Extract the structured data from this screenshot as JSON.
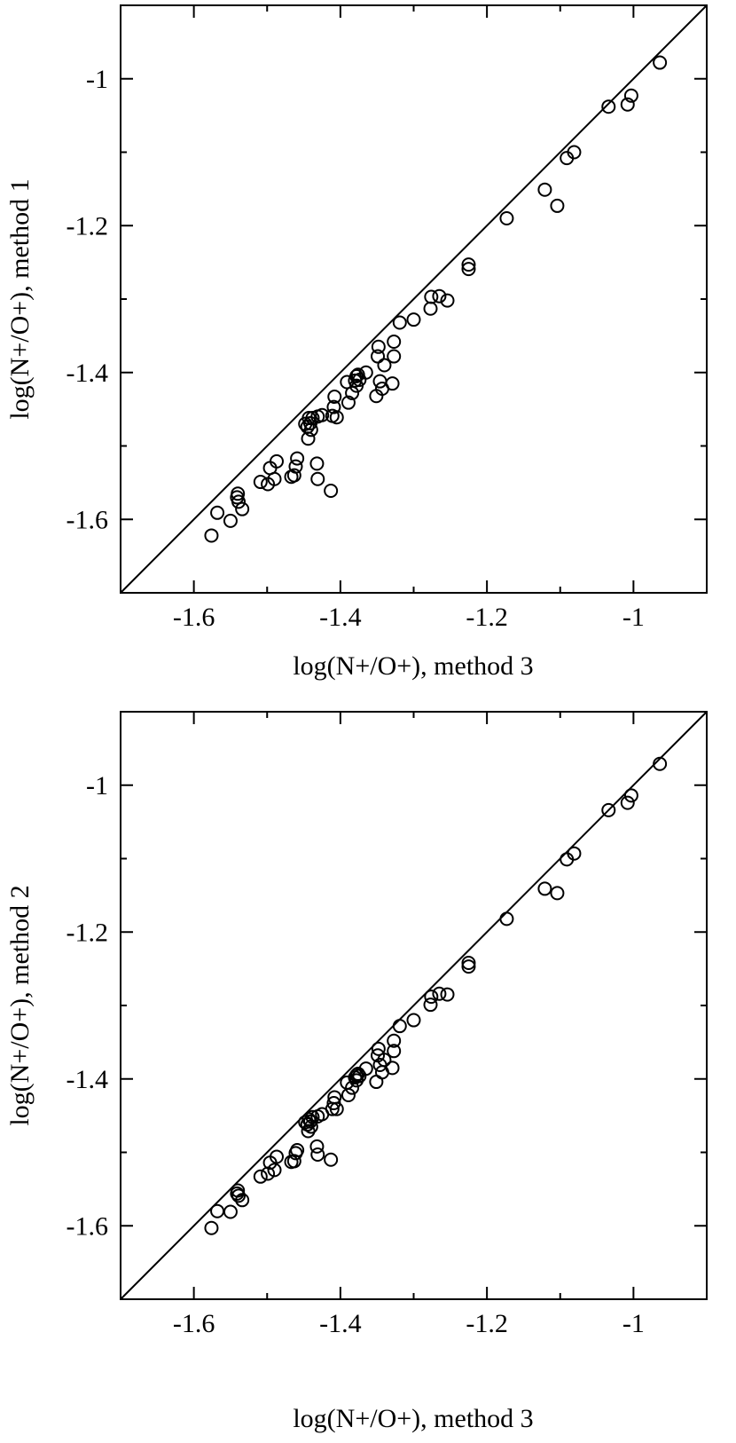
{
  "chart_data": [
    {
      "type": "scatter",
      "xlabel": "log(N+/O+),  method 3",
      "ylabel": "log(N+/O+),  method 1",
      "xlim": [
        -1.7,
        -0.9
      ],
      "ylim": [
        -1.7,
        -0.9
      ],
      "xticks": [
        -1.6,
        -1.4,
        -1.2,
        -1
      ],
      "yticks": [
        -1.6,
        -1.4,
        -1.2,
        -1
      ],
      "xtick_labels": [
        "-1.6",
        "-1.4",
        "-1.2",
        "-1"
      ],
      "ytick_labels": [
        "-1.6",
        "-1.4",
        "-1.2",
        "-1"
      ],
      "reference_line": "y = x",
      "grid": false,
      "points": [
        [
          -0.964,
          -0.978
        ],
        [
          -1.003,
          -1.023
        ],
        [
          -1.008,
          -1.035
        ],
        [
          -1.034,
          -1.038
        ],
        [
          -1.081,
          -1.1
        ],
        [
          -1.091,
          -1.108
        ],
        [
          -1.104,
          -1.173
        ],
        [
          -1.121,
          -1.151
        ],
        [
          -1.173,
          -1.19
        ],
        [
          -1.225,
          -1.253
        ],
        [
          -1.225,
          -1.259
        ],
        [
          -1.254,
          -1.302
        ],
        [
          -1.265,
          -1.296
        ],
        [
          -1.276,
          -1.297
        ],
        [
          -1.277,
          -1.313
        ],
        [
          -1.3,
          -1.328
        ],
        [
          -1.319,
          -1.332
        ],
        [
          -1.327,
          -1.358
        ],
        [
          -1.327,
          -1.378
        ],
        [
          -1.329,
          -1.415
        ],
        [
          -1.34,
          -1.39
        ],
        [
          -1.343,
          -1.422
        ],
        [
          -1.346,
          -1.412
        ],
        [
          -1.348,
          -1.365
        ],
        [
          -1.349,
          -1.378
        ],
        [
          -1.351,
          -1.432
        ],
        [
          -1.365,
          -1.4
        ],
        [
          -1.374,
          -1.41
        ],
        [
          -1.376,
          -1.403
        ],
        [
          -1.378,
          -1.418
        ],
        [
          -1.378,
          -1.405
        ],
        [
          -1.38,
          -1.411
        ],
        [
          -1.384,
          -1.428
        ],
        [
          -1.389,
          -1.441
        ],
        [
          -1.391,
          -1.413
        ],
        [
          -1.405,
          -1.461
        ],
        [
          -1.408,
          -1.433
        ],
        [
          -1.409,
          -1.447
        ],
        [
          -1.411,
          -1.459
        ],
        [
          -1.413,
          -1.561
        ],
        [
          -1.425,
          -1.458
        ],
        [
          -1.431,
          -1.46
        ],
        [
          -1.431,
          -1.545
        ],
        [
          -1.432,
          -1.524
        ],
        [
          -1.438,
          -1.462
        ],
        [
          -1.44,
          -1.478
        ],
        [
          -1.441,
          -1.469
        ],
        [
          -1.443,
          -1.462
        ],
        [
          -1.444,
          -1.49
        ],
        [
          -1.445,
          -1.474
        ],
        [
          -1.448,
          -1.47
        ],
        [
          -1.459,
          -1.517
        ],
        [
          -1.461,
          -1.528
        ],
        [
          -1.463,
          -1.54
        ],
        [
          -1.467,
          -1.542
        ],
        [
          -1.487,
          -1.521
        ],
        [
          -1.49,
          -1.545
        ],
        [
          -1.496,
          -1.53
        ],
        [
          -1.499,
          -1.552
        ],
        [
          -1.509,
          -1.549
        ],
        [
          -1.534,
          -1.586
        ],
        [
          -1.539,
          -1.576
        ],
        [
          -1.54,
          -1.565
        ],
        [
          -1.541,
          -1.57
        ],
        [
          -1.55,
          -1.602
        ],
        [
          -1.568,
          -1.591
        ],
        [
          -1.576,
          -1.622
        ]
      ]
    },
    {
      "type": "scatter",
      "xlabel": "log(N+/O+),  method 3",
      "ylabel": "log(N+/O+),  method 2",
      "xlim": [
        -1.7,
        -0.9
      ],
      "ylim": [
        -1.7,
        -0.9
      ],
      "xticks": [
        -1.6,
        -1.4,
        -1.2,
        -1
      ],
      "yticks": [
        -1.6,
        -1.4,
        -1.2,
        -1
      ],
      "xtick_labels": [
        "-1.6",
        "-1.4",
        "-1.2",
        "-1"
      ],
      "ytick_labels": [
        "-1.6",
        "-1.4",
        "-1.2",
        "-1"
      ],
      "reference_line": "y = x",
      "grid": false,
      "points": [
        [
          -0.964,
          -0.971
        ],
        [
          -1.003,
          -1.014
        ],
        [
          -1.008,
          -1.024
        ],
        [
          -1.034,
          -1.034
        ],
        [
          -1.081,
          -1.093
        ],
        [
          -1.091,
          -1.101
        ],
        [
          -1.104,
          -1.147
        ],
        [
          -1.121,
          -1.141
        ],
        [
          -1.173,
          -1.182
        ],
        [
          -1.225,
          -1.242
        ],
        [
          -1.225,
          -1.247
        ],
        [
          -1.254,
          -1.285
        ],
        [
          -1.265,
          -1.284
        ],
        [
          -1.276,
          -1.288
        ],
        [
          -1.277,
          -1.299
        ],
        [
          -1.3,
          -1.32
        ],
        [
          -1.319,
          -1.328
        ],
        [
          -1.327,
          -1.348
        ],
        [
          -1.327,
          -1.362
        ],
        [
          -1.329,
          -1.385
        ],
        [
          -1.34,
          -1.374
        ],
        [
          -1.343,
          -1.391
        ],
        [
          -1.346,
          -1.381
        ],
        [
          -1.348,
          -1.359
        ],
        [
          -1.349,
          -1.368
        ],
        [
          -1.351,
          -1.404
        ],
        [
          -1.365,
          -1.386
        ],
        [
          -1.374,
          -1.396
        ],
        [
          -1.376,
          -1.393
        ],
        [
          -1.378,
          -1.402
        ],
        [
          -1.378,
          -1.395
        ],
        [
          -1.38,
          -1.398
        ],
        [
          -1.384,
          -1.412
        ],
        [
          -1.389,
          -1.422
        ],
        [
          -1.391,
          -1.405
        ],
        [
          -1.405,
          -1.441
        ],
        [
          -1.408,
          -1.425
        ],
        [
          -1.409,
          -1.433
        ],
        [
          -1.411,
          -1.441
        ],
        [
          -1.413,
          -1.51
        ],
        [
          -1.425,
          -1.448
        ],
        [
          -1.431,
          -1.451
        ],
        [
          -1.431,
          -1.503
        ],
        [
          -1.432,
          -1.492
        ],
        [
          -1.438,
          -1.452
        ],
        [
          -1.44,
          -1.465
        ],
        [
          -1.441,
          -1.458
        ],
        [
          -1.443,
          -1.455
        ],
        [
          -1.444,
          -1.471
        ],
        [
          -1.445,
          -1.462
        ],
        [
          -1.448,
          -1.459
        ],
        [
          -1.459,
          -1.497
        ],
        [
          -1.461,
          -1.501
        ],
        [
          -1.463,
          -1.512
        ],
        [
          -1.467,
          -1.513
        ],
        [
          -1.487,
          -1.506
        ],
        [
          -1.49,
          -1.524
        ],
        [
          -1.496,
          -1.514
        ],
        [
          -1.499,
          -1.529
        ],
        [
          -1.509,
          -1.533
        ],
        [
          -1.534,
          -1.565
        ],
        [
          -1.539,
          -1.559
        ],
        [
          -1.54,
          -1.552
        ],
        [
          -1.541,
          -1.556
        ],
        [
          -1.55,
          -1.581
        ],
        [
          -1.568,
          -1.58
        ],
        [
          -1.576,
          -1.603
        ]
      ]
    }
  ]
}
